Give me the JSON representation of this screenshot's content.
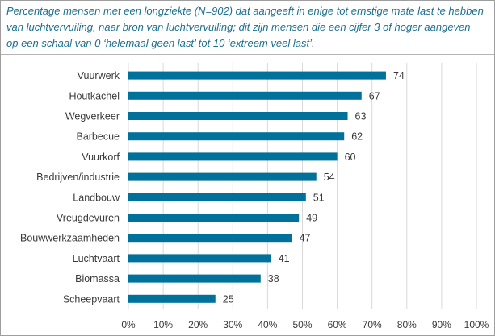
{
  "title": "Percentage mensen met een longziekte (N=902)  dat aangeeft in enige tot ernstige mate last te hebben\nvan luchtvervuiling,  naar bron van luchtvervuiling;  dit zijn mensen die een cijfer 3 of hoger aangeven\nop een schaal  van 0  ‘helemaal geen last’ tot 10 ‘extreem veel last’.",
  "colors": {
    "bar": "#00719a",
    "title": "#1d6f8e",
    "grid": "#d9d9d9"
  },
  "chart_data": {
    "type": "bar",
    "orientation": "horizontal",
    "categories": [
      "Vuurwerk",
      "Houtkachel",
      "Wegverkeer",
      "Barbecue",
      "Vuurkorf",
      "Bedrijven/industrie",
      "Landbouw",
      "Vreugdevuren",
      "Bouwwerkzaamheden",
      "Luchtvaart",
      "Biomassa",
      "Scheepvaart"
    ],
    "values": [
      74,
      67,
      63,
      62,
      60,
      54,
      51,
      49,
      47,
      41,
      38,
      25
    ],
    "xlim": [
      0,
      100
    ],
    "xticks": [
      0,
      10,
      20,
      30,
      40,
      50,
      60,
      70,
      80,
      90,
      100
    ],
    "xtick_labels": [
      "0%",
      "10%",
      "20%",
      "30%",
      "40%",
      "50%",
      "60%",
      "70%",
      "80%",
      "90%",
      "100%"
    ],
    "grid": true,
    "data_labels": true
  }
}
